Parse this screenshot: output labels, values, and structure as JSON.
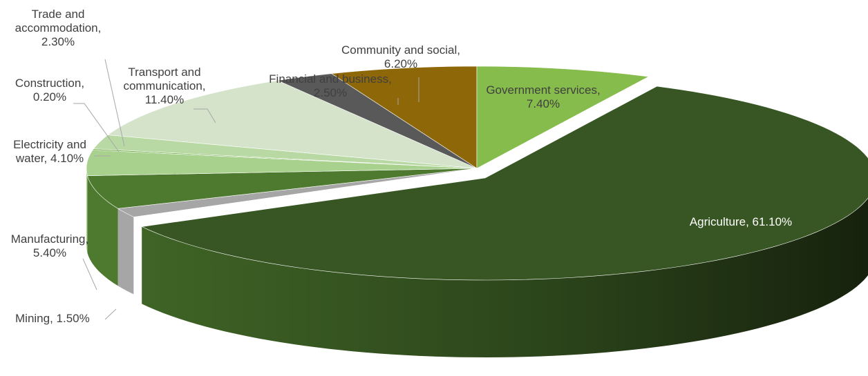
{
  "chart_data": {
    "type": "pie",
    "variant": "3d-exploded",
    "title": "",
    "categories": [
      "Government services",
      "Agriculture",
      "Mining",
      "Manufacturing",
      "Electricity and water",
      "Construction",
      "Trade and accommodation",
      "Transport and communication",
      "Financial and business",
      "Community and social"
    ],
    "values": [
      7.4,
      61.1,
      1.5,
      5.4,
      4.1,
      0.2,
      2.3,
      11.4,
      2.5,
      6.2
    ],
    "labels": [
      [
        "Government services,",
        "7.40%"
      ],
      [
        "Agriculture, 61.10%"
      ],
      [
        "Mining, 1.50%"
      ],
      [
        "Manufacturing,",
        "5.40%"
      ],
      [
        "Electricity and",
        "water, 4.10%"
      ],
      [
        "Construction,",
        "0.20%"
      ],
      [
        "Trade and",
        "accommodation,",
        "2.30%"
      ],
      [
        "Transport and",
        "communication,",
        "11.40%"
      ],
      [
        "Financial and business,",
        "2.50%"
      ],
      [
        "Community and social,",
        "6.20%"
      ]
    ],
    "colors": [
      "#86bc4b",
      "#375623",
      "#a6a6a6",
      "#4e7a2f",
      "#a9d18e",
      "#70ad47",
      "#b9d9a4",
      "#d4e3c9",
      "#595959",
      "#8d6708"
    ],
    "legend": "none"
  }
}
